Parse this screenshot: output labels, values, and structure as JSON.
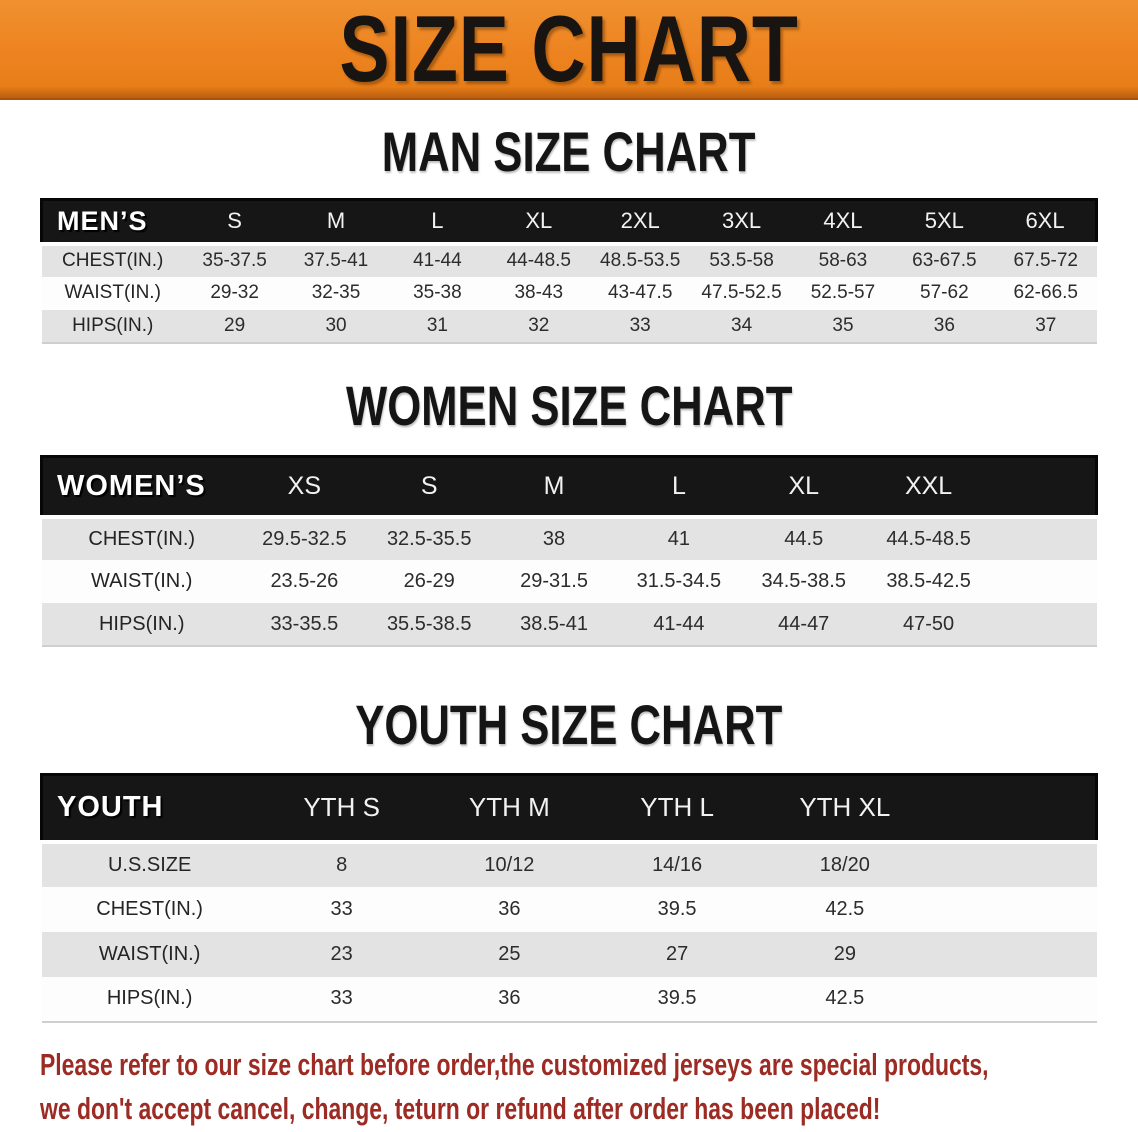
{
  "banner": {
    "title": "SIZE CHART",
    "bg_color": "#ED8421"
  },
  "colors": {
    "header_bar": "#161616",
    "row_stripe": "#E3E3E3",
    "disclaimer_red": "#9C2B24"
  },
  "sections": [
    {
      "title": "MAN SIZE CHART",
      "table": {
        "corner": "MEN’S",
        "columns": [
          "S",
          "M",
          "L",
          "XL",
          "2XL",
          "3XL",
          "4XL",
          "5XL",
          "6XL"
        ],
        "rows": [
          {
            "label": "CHEST(IN.)",
            "values": [
              "35-37.5",
              "37.5-41",
              "41-44",
              "44-48.5",
              "48.5-53.5",
              "53.5-58",
              "58-63",
              "63-67.5",
              "67.5-72"
            ]
          },
          {
            "label": "WAIST(IN.)",
            "values": [
              "29-32",
              "32-35",
              "35-38",
              "38-43",
              "43-47.5",
              "47.5-52.5",
              "52.5-57",
              "57-62",
              "62-66.5"
            ]
          },
          {
            "label": "HIPS(IN.)",
            "values": [
              "29",
              "30",
              "31",
              "32",
              "33",
              "34",
              "35",
              "36",
              "37"
            ]
          }
        ]
      }
    },
    {
      "title": "WOMEN SIZE CHART",
      "table": {
        "corner": "WOMEN’S",
        "columns": [
          "XS",
          "S",
          "M",
          "L",
          "XL",
          "XXL"
        ],
        "rows": [
          {
            "label": "CHEST(IN.)",
            "values": [
              "29.5-32.5",
              "32.5-35.5",
              "38",
              "41",
              "44.5",
              "44.5-48.5"
            ]
          },
          {
            "label": "WAIST(IN.)",
            "values": [
              "23.5-26",
              "26-29",
              "29-31.5",
              "31.5-34.5",
              "34.5-38.5",
              "38.5-42.5"
            ]
          },
          {
            "label": "HIPS(IN.)",
            "values": [
              "33-35.5",
              "35.5-38.5",
              "38.5-41",
              "41-44",
              "44-47",
              "47-50"
            ]
          }
        ]
      }
    },
    {
      "title": "YOUTH SIZE CHART",
      "table": {
        "corner": "YOUTH",
        "columns": [
          "YTH S",
          "YTH M",
          "YTH L",
          "YTH XL"
        ],
        "rows": [
          {
            "label": "U.S.SIZE",
            "values": [
              "8",
              "10/12",
              "14/16",
              "18/20"
            ]
          },
          {
            "label": "CHEST(IN.)",
            "values": [
              "33",
              "36",
              "39.5",
              "42.5"
            ]
          },
          {
            "label": "WAIST(IN.)",
            "values": [
              "23",
              "25",
              "27",
              "29"
            ]
          },
          {
            "label": "HIPS(IN.)",
            "values": [
              "33",
              "36",
              "39.5",
              "42.5"
            ]
          }
        ]
      }
    }
  ],
  "disclaimer": {
    "line1": "Please refer to our size chart before order,the customized jerseys are special products,",
    "line2": "we don't accept cancel, change, teturn or refund after order has been placed!"
  }
}
